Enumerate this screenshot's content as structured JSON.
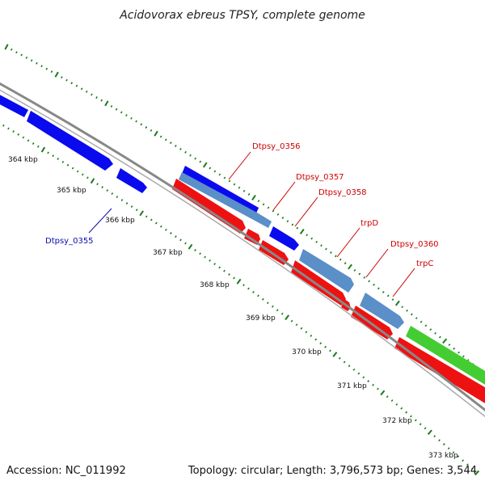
{
  "title": "Acidovorax ebreus TPSY, complete genome",
  "accession": "Accession: NC_011992",
  "summary": "Topology: circular; Length: 3,796,573 bp; Genes: 3,544",
  "colors": {
    "backbone": "#888888",
    "tick": "#1a7a1a",
    "forward_gene": "#0a0aee",
    "forward_highlight": "#5a8fc8",
    "reverse_gene": "#ee1111",
    "rna_gene": "#44cc33",
    "label_forward": "#0a0aaa",
    "label_reverse": "#cc0000"
  },
  "tick_labels": [
    {
      "text": "364 kbp",
      "kbp": 364
    },
    {
      "text": "365 kbp",
      "kbp": 365
    },
    {
      "text": "366 kbp",
      "kbp": 366
    },
    {
      "text": "367 kbp",
      "kbp": 367
    },
    {
      "text": "368 kbp",
      "kbp": 368
    },
    {
      "text": "369 kbp",
      "kbp": 369
    },
    {
      "text": "370 kbp",
      "kbp": 370
    },
    {
      "text": "371 kbp",
      "kbp": 371
    },
    {
      "text": "372 kbp",
      "kbp": 372
    },
    {
      "text": "373 kbp",
      "kbp": 373
    }
  ],
  "gene_labels": [
    {
      "text": "Dtpsy_0355",
      "strand": "forward"
    },
    {
      "text": "Dtpsy_0356",
      "strand": "reverse"
    },
    {
      "text": "Dtpsy_0357",
      "strand": "reverse"
    },
    {
      "text": "Dtpsy_0358",
      "strand": "reverse"
    },
    {
      "text": "trpD",
      "strand": "reverse"
    },
    {
      "text": "Dtpsy_0360",
      "strand": "reverse"
    },
    {
      "text": "trpC",
      "strand": "reverse"
    }
  ]
}
